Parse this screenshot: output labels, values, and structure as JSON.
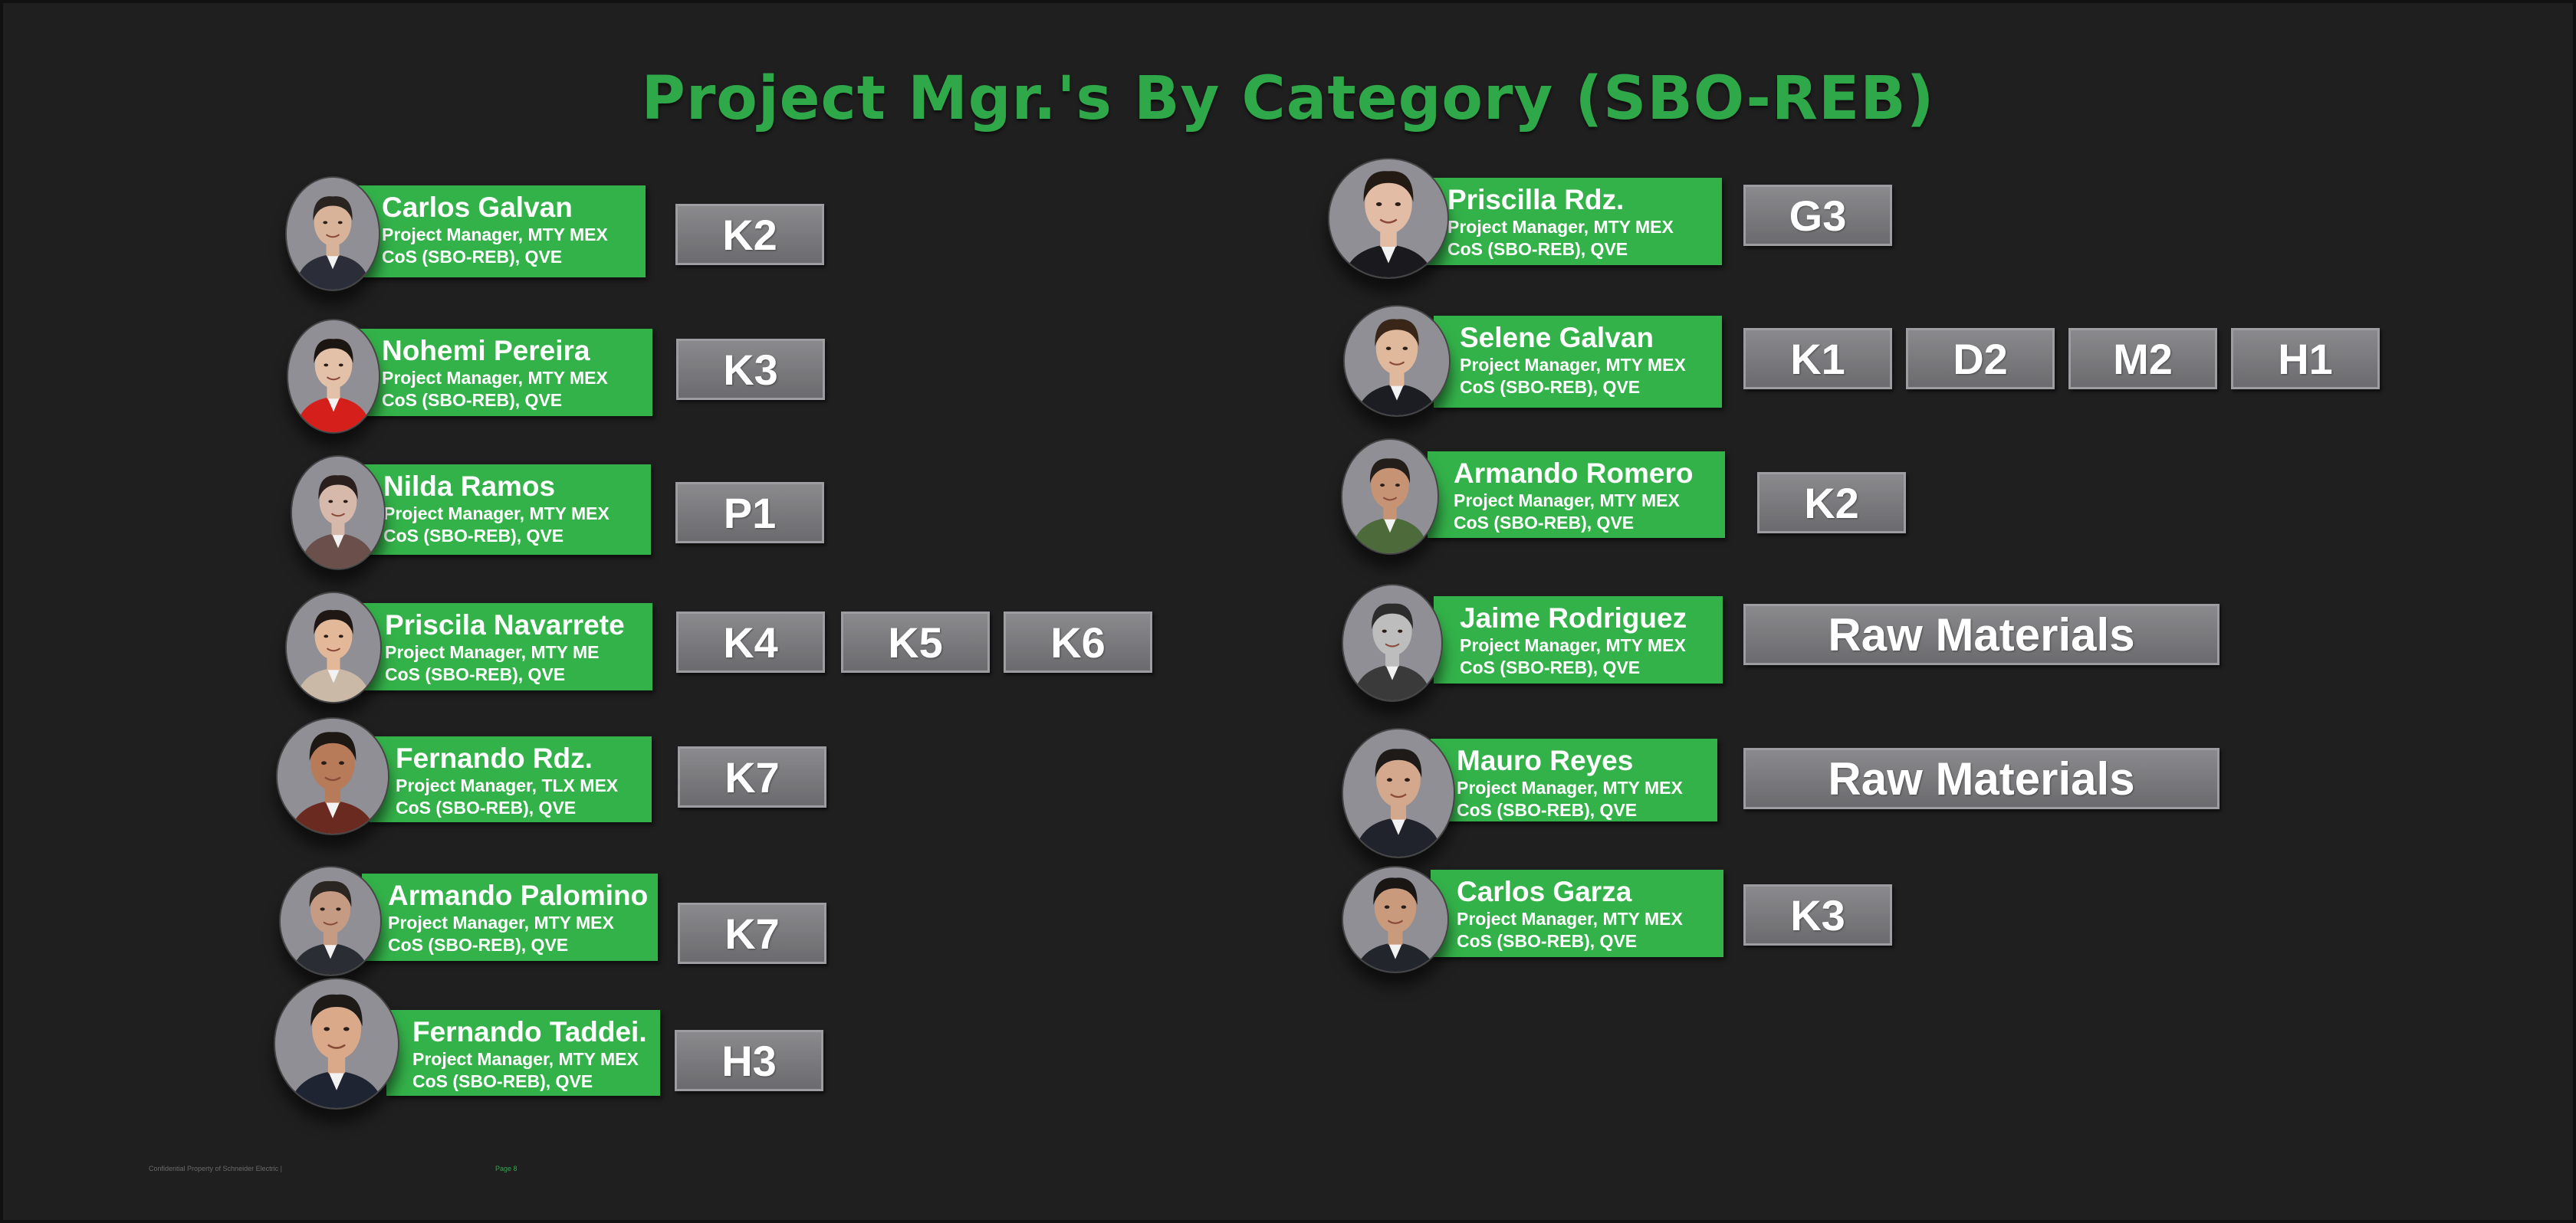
{
  "title": "Project Mgr.'s By Category (SBO-REB)",
  "footer": {
    "left": "Confidential Property of Schneider Electric |",
    "page": "Page 8"
  },
  "colors": {
    "background": "#1f1f1f",
    "title_green": "#2fa84a",
    "card_green": "#34b24a",
    "tag_gray": "#7b7b7e"
  },
  "managers": [
    {
      "name": "Carlos Galvan",
      "role": "Project Manager, MTY MEX",
      "org": "CoS (SBO-REB), QVE",
      "tags": [
        "K2"
      ],
      "skin": "#d8b39a",
      "hair": "#2a2420",
      "shirt": "#2b2e38"
    },
    {
      "name": "Nohemi Pereira",
      "role": "Project Manager, MTY MEX",
      "org": "CoS (SBO-REB), QVE",
      "tags": [
        "K3"
      ],
      "skin": "#e3c0a8",
      "hair": "#1c1612",
      "shirt": "#d41f1a"
    },
    {
      "name": "Nilda Ramos",
      "role": "Project Manager, MTY MEX",
      "org": "CoS (SBO-REB), QVE",
      "tags": [
        "P1"
      ],
      "skin": "#d7b9ac",
      "hair": "#2a1f1c",
      "shirt": "#6b4f4a"
    },
    {
      "name": "Priscila Navarrete",
      "role": "Project Manager, MTY ME",
      "org": "CoS (SBO-REB), QVE",
      "tags": [
        "K4",
        "K5",
        "K6"
      ],
      "skin": "#e2b899",
      "hair": "#1e1713",
      "shirt": "#c9b9a6"
    },
    {
      "name": "Fernando Rdz.",
      "role": "Project Manager, TLX MEX",
      "org": "CoS (SBO-REB), QVE",
      "tags": [
        "K7"
      ],
      "skin": "#b87b5a",
      "hair": "#1d1814",
      "shirt": "#6a2a20"
    },
    {
      "name": "Armando Palomino",
      "role": "Project Manager, MTY MEX",
      "org": "CoS (SBO-REB), QVE",
      "tags": [
        "K7"
      ],
      "skin": "#c59b84",
      "hair": "#2b2622",
      "shirt": "#2a2d33"
    },
    {
      "name": "Fernando Taddei.",
      "role": "Project Manager, MTY MEX",
      "org": "CoS (SBO-REB), QVE",
      "tags": [
        "H3"
      ],
      "skin": "#d9a98a",
      "hair": "#1e1a18",
      "shirt": "#1f2432"
    },
    {
      "name": "Priscilla Rdz.",
      "role": "Project Manager, MTY MEX",
      "org": "CoS (SBO-REB), QVE",
      "tags": [
        "G3"
      ],
      "skin": "#e2bca4",
      "hair": "#241a14",
      "shirt": "#1a1a1e"
    },
    {
      "name": "Selene Galvan",
      "role": "Project Manager, MTY MEX",
      "org": "CoS (SBO-REB), QVE",
      "tags": [
        "K1",
        "D2",
        "M2",
        "H1"
      ],
      "skin": "#e0b89c",
      "hair": "#3a2618",
      "shirt": "#1b1d22"
    },
    {
      "name": "Armando Romero",
      "role": "Project Manager, MTY MEX",
      "org": "CoS (SBO-REB), QVE",
      "tags": [
        "K2"
      ],
      "skin": "#c69475",
      "hair": "#241e1a",
      "shirt": "#4d6b3a"
    },
    {
      "name": "Jaime Rodriguez",
      "role": "Project Manager, MTY MEX",
      "org": "CoS (SBO-REB), QVE",
      "tags": [
        "Raw Materials"
      ],
      "skin": "#bdbdbd",
      "hair": "#2c2c2c",
      "shirt": "#3a3a3a"
    },
    {
      "name": "Mauro Reyes",
      "role": "Project Manager, MTY MEX",
      "org": "CoS (SBO-REB), QVE",
      "tags": [
        "Raw Materials"
      ],
      "skin": "#d4a88c",
      "hair": "#1e1a18",
      "shirt": "#20232b"
    },
    {
      "name": "Carlos Garza",
      "role": "Project Manager, MTY MEX",
      "org": "CoS (SBO-REB), QVE",
      "tags": [
        "K3"
      ],
      "skin": "#c99a7c",
      "hair": "#1a1614",
      "shirt": "#22252c"
    }
  ]
}
